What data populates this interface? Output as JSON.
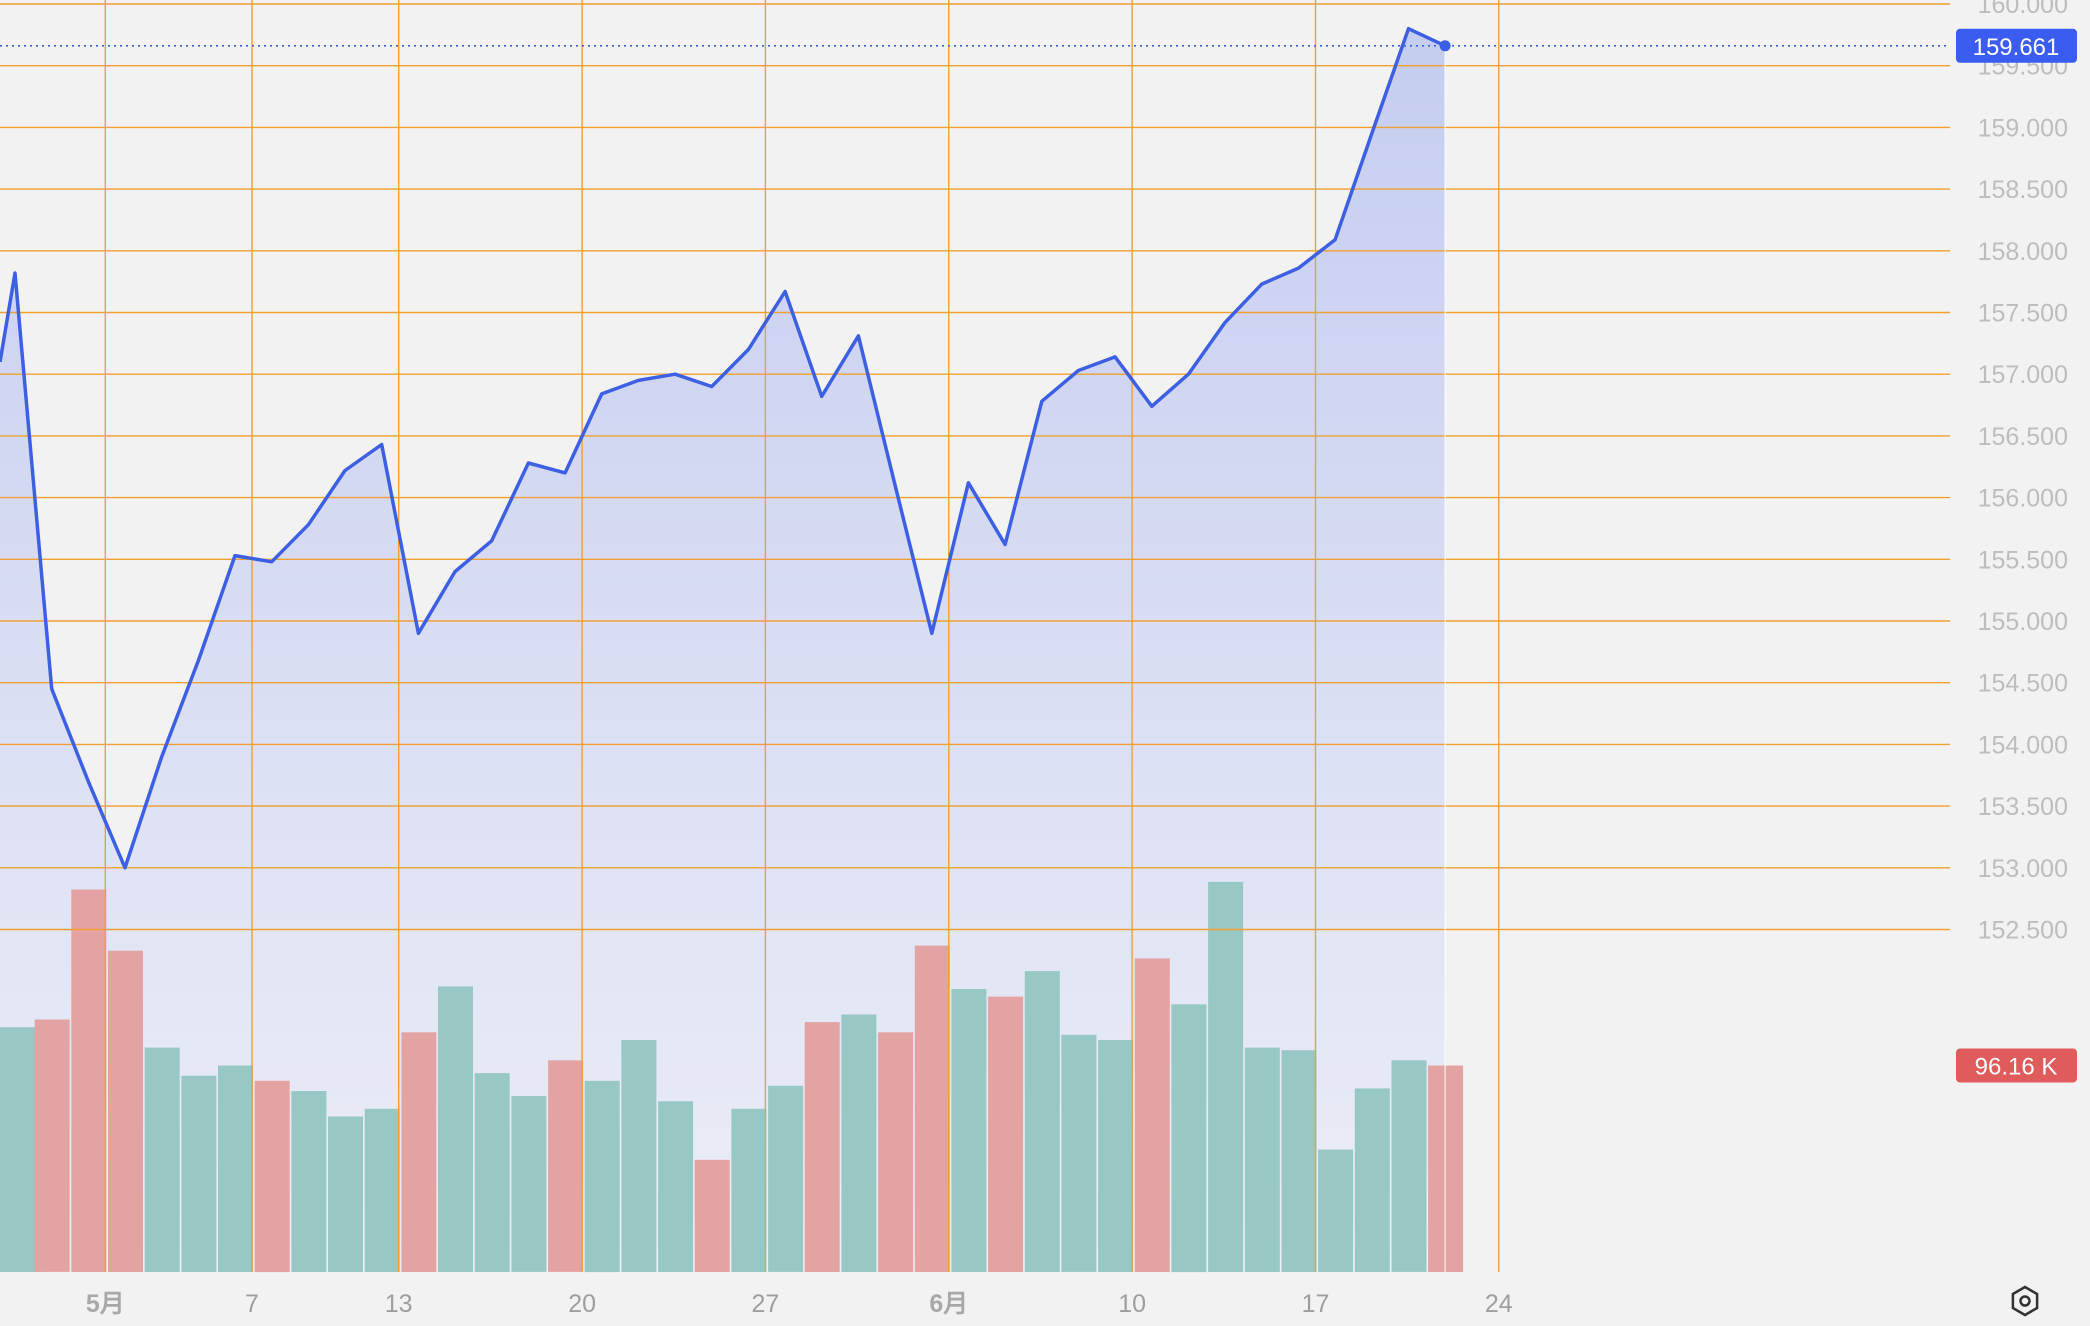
{
  "chart_data": {
    "type": "area",
    "price_label": "159.661",
    "volume_label": "96.16 K",
    "colors": {
      "line": "#3d5fe4",
      "area_top": "#c5cdf0",
      "area_bottom": "#eceef6",
      "grid": "#f0a030",
      "volume_up": "#98c8c3",
      "volume_down": "#e4a3a3",
      "price_badge": "#3b5cf0",
      "volume_badge": "#e05c5c",
      "background": "#f2f2f2"
    },
    "ylim": [
      152.3,
      160.0
    ],
    "y_ticks": [
      "152.500",
      "153.000",
      "153.500",
      "154.000",
      "154.500",
      "155.000",
      "155.500",
      "156.000",
      "156.500",
      "157.000",
      "157.500",
      "158.000",
      "158.500",
      "159.000",
      "159.500",
      "160.000"
    ],
    "x_ticks": [
      {
        "label": "5月",
        "index": 1,
        "bold": true
      },
      {
        "label": "7",
        "index": 5,
        "bold": false
      },
      {
        "label": "13",
        "index": 9,
        "bold": false
      },
      {
        "label": "20",
        "index": 14,
        "bold": false
      },
      {
        "label": "27",
        "index": 19,
        "bold": false
      },
      {
        "label": "6月",
        "index": 24,
        "bold": true
      },
      {
        "label": "10",
        "index": 29,
        "bold": false
      },
      {
        "label": "17",
        "index": 34,
        "bold": false
      },
      {
        "label": "24",
        "index": 39,
        "bold": false
      }
    ],
    "series": [
      {
        "values": [
          157.1,
          157.82,
          154.45,
          153.7,
          153.0,
          153.9,
          154.68,
          155.53,
          155.48,
          155.78,
          156.22,
          156.43,
          154.9,
          155.4,
          155.65,
          156.28,
          156.2,
          156.84,
          156.95,
          157.0,
          156.9,
          157.2,
          157.67,
          156.82,
          157.31,
          156.1,
          154.9,
          156.12,
          155.62,
          156.78,
          157.03,
          157.14,
          156.74,
          157.0,
          157.42,
          157.73,
          157.86,
          158.09,
          158.95,
          159.8,
          159.661
        ]
      }
    ],
    "volume": {
      "max": 200,
      "values": [
        {
          "v": 96,
          "dir": "up"
        },
        {
          "v": 99,
          "dir": "down"
        },
        {
          "v": 150,
          "dir": "down"
        },
        {
          "v": 126,
          "dir": "down"
        },
        {
          "v": 88,
          "dir": "up"
        },
        {
          "v": 77,
          "dir": "up"
        },
        {
          "v": 81,
          "dir": "up"
        },
        {
          "v": 75,
          "dir": "down"
        },
        {
          "v": 71,
          "dir": "up"
        },
        {
          "v": 61,
          "dir": "up"
        },
        {
          "v": 64,
          "dir": "up"
        },
        {
          "v": 94,
          "dir": "down"
        },
        {
          "v": 112,
          "dir": "up"
        },
        {
          "v": 78,
          "dir": "up"
        },
        {
          "v": 69,
          "dir": "up"
        },
        {
          "v": 83,
          "dir": "down"
        },
        {
          "v": 75,
          "dir": "up"
        },
        {
          "v": 91,
          "dir": "up"
        },
        {
          "v": 67,
          "dir": "up"
        },
        {
          "v": 44,
          "dir": "down"
        },
        {
          "v": 64,
          "dir": "up"
        },
        {
          "v": 73,
          "dir": "up"
        },
        {
          "v": 98,
          "dir": "down"
        },
        {
          "v": 101,
          "dir": "up"
        },
        {
          "v": 94,
          "dir": "down"
        },
        {
          "v": 128,
          "dir": "down"
        },
        {
          "v": 111,
          "dir": "up"
        },
        {
          "v": 108,
          "dir": "down"
        },
        {
          "v": 118,
          "dir": "up"
        },
        {
          "v": 93,
          "dir": "up"
        },
        {
          "v": 91,
          "dir": "up"
        },
        {
          "v": 123,
          "dir": "down"
        },
        {
          "v": 105,
          "dir": "up"
        },
        {
          "v": 153,
          "dir": "up"
        },
        {
          "v": 88,
          "dir": "up"
        },
        {
          "v": 87,
          "dir": "up"
        },
        {
          "v": 48,
          "dir": "up"
        },
        {
          "v": 72,
          "dir": "up"
        },
        {
          "v": 83,
          "dir": "up"
        },
        {
          "v": 81,
          "dir": "down"
        }
      ]
    }
  }
}
